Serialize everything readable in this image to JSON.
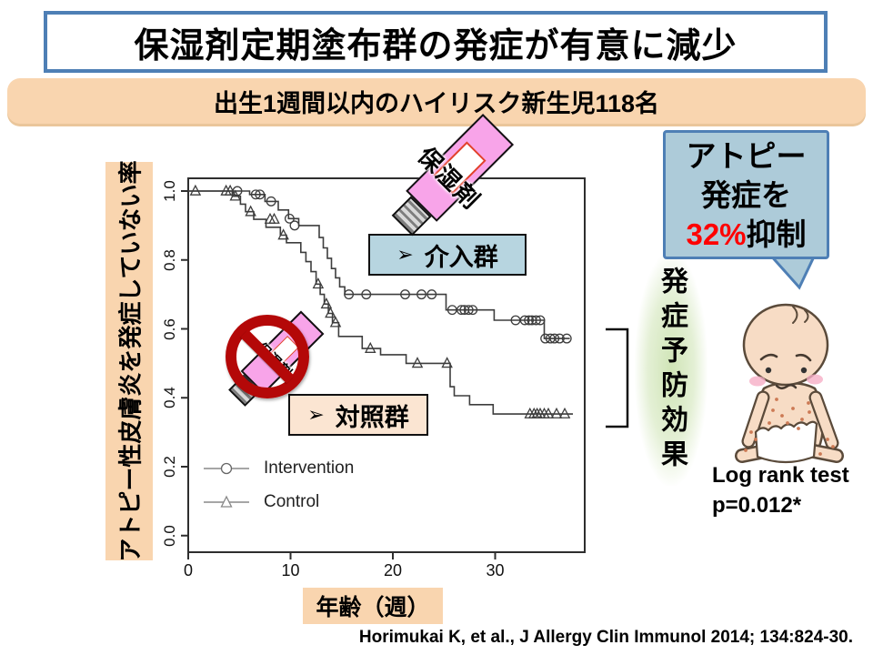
{
  "slide": {
    "title": "保湿剤定期塗布群の発症が有意に減少",
    "subtitle_banner": "出生1週間以内のハイリスク新生児118名",
    "citation": "Horimukai K, et al., J Allergy Clin Immunol 2014; 134:824-30."
  },
  "chart_data": {
    "type": "line",
    "subtype": "kaplan_meier_step",
    "title": "",
    "xlabel": "年齢（週）",
    "ylabel": "アトピー性皮膚炎を発症していない率",
    "xlim": [
      0,
      38
    ],
    "ylim": [
      0.0,
      1.0
    ],
    "x_ticks": [
      0,
      10,
      20,
      30
    ],
    "y_ticks": [
      "1.0",
      "0.8",
      "0.6",
      "0.4",
      "0.2",
      "0.0"
    ],
    "grid": false,
    "legend_position": "inside-bottom-left",
    "legend": [
      {
        "label": "Intervention",
        "marker": "circle"
      },
      {
        "label": "Control",
        "marker": "triangle"
      }
    ],
    "series": [
      {
        "name": "Intervention",
        "marker": "circle",
        "steps": [
          [
            0,
            1.0
          ],
          [
            6.0,
            1.0
          ],
          [
            6.0,
            0.99
          ],
          [
            7.5,
            0.99
          ],
          [
            7.5,
            0.97
          ],
          [
            8.8,
            0.97
          ],
          [
            8.8,
            0.945
          ],
          [
            9.8,
            0.945
          ],
          [
            9.8,
            0.92
          ],
          [
            10.8,
            0.92
          ],
          [
            10.8,
            0.9
          ],
          [
            12.8,
            0.9
          ],
          [
            12.8,
            0.865
          ],
          [
            13.2,
            0.865
          ],
          [
            13.2,
            0.835
          ],
          [
            13.6,
            0.835
          ],
          [
            13.6,
            0.805
          ],
          [
            14.0,
            0.805
          ],
          [
            14.0,
            0.775
          ],
          [
            14.4,
            0.775
          ],
          [
            14.4,
            0.748
          ],
          [
            14.8,
            0.748
          ],
          [
            14.8,
            0.722
          ],
          [
            15.3,
            0.722
          ],
          [
            15.3,
            0.7
          ],
          [
            25.2,
            0.7
          ],
          [
            25.2,
            0.655
          ],
          [
            29.9,
            0.655
          ],
          [
            29.9,
            0.625
          ],
          [
            34.8,
            0.625
          ],
          [
            34.8,
            0.572
          ],
          [
            37.3,
            0.572
          ]
        ],
        "censors": [
          [
            4.8,
            1.0
          ],
          [
            6.6,
            0.99
          ],
          [
            7.0,
            0.99
          ],
          [
            8.1,
            0.97
          ],
          [
            9.9,
            0.92
          ],
          [
            10.4,
            0.9
          ],
          [
            15.7,
            0.7
          ],
          [
            17.4,
            0.7
          ],
          [
            21.2,
            0.7
          ],
          [
            22.8,
            0.7
          ],
          [
            23.8,
            0.7
          ],
          [
            25.8,
            0.655
          ],
          [
            26.7,
            0.655
          ],
          [
            27.0,
            0.655
          ],
          [
            27.4,
            0.655
          ],
          [
            27.8,
            0.655
          ],
          [
            32.0,
            0.625
          ],
          [
            32.9,
            0.625
          ],
          [
            33.3,
            0.625
          ],
          [
            33.6,
            0.625
          ],
          [
            34.0,
            0.625
          ],
          [
            34.4,
            0.625
          ],
          [
            34.9,
            0.572
          ],
          [
            35.4,
            0.572
          ],
          [
            35.8,
            0.572
          ],
          [
            36.3,
            0.572
          ],
          [
            37.0,
            0.572
          ]
        ]
      },
      {
        "name": "Control",
        "marker": "triangle",
        "steps": [
          [
            0,
            1.0
          ],
          [
            4.3,
            1.0
          ],
          [
            4.3,
            0.985
          ],
          [
            5.1,
            0.985
          ],
          [
            5.1,
            0.962
          ],
          [
            5.6,
            0.962
          ],
          [
            5.6,
            0.94
          ],
          [
            6.4,
            0.94
          ],
          [
            6.4,
            0.918
          ],
          [
            7.6,
            0.918
          ],
          [
            7.6,
            0.895
          ],
          [
            9.0,
            0.895
          ],
          [
            9.0,
            0.872
          ],
          [
            9.6,
            0.872
          ],
          [
            9.6,
            0.85
          ],
          [
            11.0,
            0.85
          ],
          [
            11.0,
            0.822
          ],
          [
            11.5,
            0.822
          ],
          [
            11.5,
            0.795
          ],
          [
            12.0,
            0.795
          ],
          [
            12.0,
            0.766
          ],
          [
            12.5,
            0.766
          ],
          [
            12.5,
            0.73
          ],
          [
            12.9,
            0.73
          ],
          [
            12.9,
            0.7
          ],
          [
            13.3,
            0.7
          ],
          [
            13.3,
            0.672
          ],
          [
            13.7,
            0.672
          ],
          [
            13.7,
            0.645
          ],
          [
            14.1,
            0.645
          ],
          [
            14.1,
            0.618
          ],
          [
            14.7,
            0.618
          ],
          [
            14.7,
            0.578
          ],
          [
            17.0,
            0.578
          ],
          [
            17.0,
            0.543
          ],
          [
            18.8,
            0.543
          ],
          [
            18.8,
            0.525
          ],
          [
            21.3,
            0.525
          ],
          [
            21.3,
            0.5
          ],
          [
            25.6,
            0.5
          ],
          [
            25.6,
            0.432
          ],
          [
            26.0,
            0.432
          ],
          [
            26.0,
            0.406
          ],
          [
            27.5,
            0.406
          ],
          [
            27.5,
            0.38
          ],
          [
            29.8,
            0.38
          ],
          [
            29.8,
            0.353
          ],
          [
            37.6,
            0.353
          ]
        ],
        "censors": [
          [
            0.7,
            1.0
          ],
          [
            3.7,
            1.0
          ],
          [
            4.1,
            1.0
          ],
          [
            4.6,
            0.985
          ],
          [
            6.1,
            0.94
          ],
          [
            8.0,
            0.918
          ],
          [
            8.4,
            0.918
          ],
          [
            9.3,
            0.872
          ],
          [
            12.7,
            0.73
          ],
          [
            13.5,
            0.672
          ],
          [
            13.9,
            0.645
          ],
          [
            14.4,
            0.618
          ],
          [
            17.8,
            0.543
          ],
          [
            22.4,
            0.5
          ],
          [
            25.3,
            0.5
          ],
          [
            33.4,
            0.353
          ],
          [
            33.8,
            0.353
          ],
          [
            34.1,
            0.353
          ],
          [
            34.4,
            0.353
          ],
          [
            34.8,
            0.353
          ],
          [
            35.2,
            0.353
          ],
          [
            36.0,
            0.353
          ],
          [
            36.8,
            0.353
          ]
        ]
      }
    ]
  },
  "annotations": {
    "intervention_box": {
      "bullet": "➢",
      "label": "介入群"
    },
    "control_box": {
      "bullet": "➢",
      "label": "対照群"
    },
    "moisturizer_tube_label": "保湿剤",
    "control_tube_label": "保湿剤",
    "bubble": {
      "line1": "アトピー",
      "line2": "発症を",
      "line3_highlight": "32%",
      "line3_rest": "抑制"
    },
    "prevention_effect": "発症予防効果",
    "log_rank": {
      "line1": "Log rank test",
      "line2": "p=0.012*"
    }
  },
  "colors": {
    "title_border": "#4e7fb5",
    "banner_bg": "#f9d5af",
    "axis_label_bg": "#f9d5af",
    "intervention_box_bg": "#b7d5e0",
    "control_box_bg": "#fbe5d2",
    "bubble_bg": "#adcbd9",
    "bubble_border": "#4e7fb5",
    "highlight_red": "#ff0000",
    "tube_pink": "#f8a4e9",
    "prohibition_red": "#b40808",
    "curve": "#3d3d3d",
    "glow_green": "#cde3b2"
  }
}
